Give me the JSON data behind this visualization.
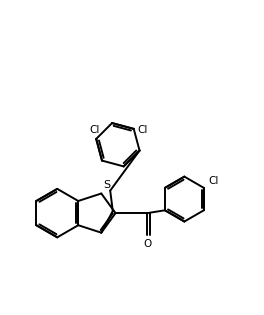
{
  "bg_color": "#ffffff",
  "line_color": "#000000",
  "line_width": 1.4,
  "fig_width": 2.66,
  "fig_height": 3.06,
  "dpi": 100,
  "xlim": [
    0,
    10
  ],
  "ylim": [
    0,
    12
  ]
}
